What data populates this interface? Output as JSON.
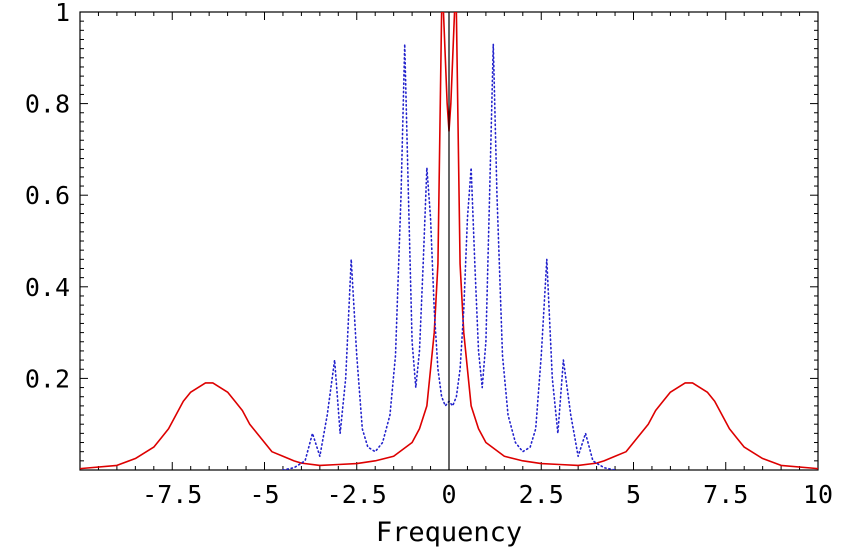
{
  "chart_data": {
    "type": "line",
    "title": "",
    "xlabel": "Frequency",
    "ylabel": "",
    "xlim": [
      -10,
      10
    ],
    "ylim": [
      0,
      1
    ],
    "x_ticks": [
      {
        "value": -7.5,
        "label": "-7.5"
      },
      {
        "value": -5,
        "label": "-5"
      },
      {
        "value": -2.5,
        "label": "-2.5"
      },
      {
        "value": 0,
        "label": "0"
      },
      {
        "value": 2.5,
        "label": "2.5"
      },
      {
        "value": 5,
        "label": "5"
      },
      {
        "value": 7.5,
        "label": "7.5"
      },
      {
        "value": 10,
        "label": "10"
      }
    ],
    "y_ticks": [
      {
        "value": 0.2,
        "label": "0.2"
      },
      {
        "value": 0.4,
        "label": "0.4"
      },
      {
        "value": 0.6,
        "label": "0.6"
      },
      {
        "value": 0.8,
        "label": "0.8"
      },
      {
        "value": 1,
        "label": "1"
      }
    ],
    "grid": false,
    "legend": "none",
    "series": [
      {
        "style": "solid",
        "color": "#dd0000",
        "x": [
          -10,
          -9,
          -8.5,
          -8,
          -7.8,
          -7.6,
          -7.4,
          -7.2,
          -7.0,
          -6.8,
          -6.6,
          -6.4,
          -6.2,
          -6.0,
          -5.8,
          -5.6,
          -5.4,
          -5.2,
          -5.0,
          -4.8,
          -4.5,
          -4.2,
          -4.0,
          -3.5,
          -3.0,
          -2.5,
          -2.0,
          -1.5,
          -1.0,
          -0.8,
          -0.6,
          -0.4,
          -0.3,
          -0.2,
          -0.15,
          -0.1,
          -0.05,
          0,
          0.05,
          0.1,
          0.15,
          0.2,
          0.3,
          0.4,
          0.6,
          0.8,
          1.0,
          1.5,
          2.0,
          2.5,
          3.0,
          3.5,
          4.0,
          4.2,
          4.5,
          4.8,
          5.0,
          5.2,
          5.4,
          5.6,
          5.8,
          6.0,
          6.2,
          6.4,
          6.6,
          6.8,
          7.0,
          7.2,
          7.4,
          7.6,
          7.8,
          8.0,
          8.5,
          9.0,
          10
        ],
        "y": [
          0.003,
          0.01,
          0.025,
          0.05,
          0.07,
          0.09,
          0.12,
          0.15,
          0.17,
          0.18,
          0.19,
          0.19,
          0.18,
          0.17,
          0.15,
          0.13,
          0.1,
          0.08,
          0.06,
          0.04,
          0.03,
          0.02,
          0.015,
          0.01,
          0.012,
          0.014,
          0.02,
          0.03,
          0.06,
          0.09,
          0.14,
          0.3,
          0.45,
          1.0,
          1.0,
          0.9,
          0.8,
          0.74,
          0.8,
          0.9,
          1.0,
          1.0,
          0.45,
          0.3,
          0.14,
          0.09,
          0.06,
          0.03,
          0.02,
          0.014,
          0.012,
          0.01,
          0.015,
          0.02,
          0.03,
          0.04,
          0.06,
          0.08,
          0.1,
          0.13,
          0.15,
          0.17,
          0.18,
          0.19,
          0.19,
          0.18,
          0.17,
          0.15,
          0.12,
          0.09,
          0.07,
          0.05,
          0.025,
          0.01,
          0.003
        ]
      },
      {
        "style": "dotted",
        "color": "#2222cc",
        "x": [
          -4.5,
          -4.2,
          -3.9,
          -3.7,
          -3.5,
          -3.3,
          -3.1,
          -2.95,
          -2.8,
          -2.65,
          -2.5,
          -2.35,
          -2.2,
          -2.0,
          -1.8,
          -1.6,
          -1.45,
          -1.3,
          -1.2,
          -1.1,
          -1.0,
          -0.9,
          -0.8,
          -0.7,
          -0.6,
          -0.5,
          -0.4,
          -0.3,
          -0.2,
          -0.1,
          0,
          0.1,
          0.2,
          0.3,
          0.4,
          0.5,
          0.6,
          0.7,
          0.8,
          0.9,
          1.0,
          1.1,
          1.2,
          1.3,
          1.45,
          1.6,
          1.8,
          2.0,
          2.2,
          2.35,
          2.5,
          2.65,
          2.8,
          2.95,
          3.1,
          3.3,
          3.5,
          3.7,
          3.9,
          4.2,
          4.5
        ],
        "y": [
          0.0,
          0.005,
          0.02,
          0.08,
          0.03,
          0.12,
          0.24,
          0.08,
          0.2,
          0.46,
          0.25,
          0.09,
          0.05,
          0.04,
          0.06,
          0.12,
          0.25,
          0.6,
          0.93,
          0.6,
          0.28,
          0.18,
          0.26,
          0.45,
          0.66,
          0.55,
          0.35,
          0.22,
          0.16,
          0.14,
          0.15,
          0.14,
          0.16,
          0.22,
          0.35,
          0.55,
          0.66,
          0.45,
          0.26,
          0.18,
          0.28,
          0.6,
          0.93,
          0.6,
          0.25,
          0.12,
          0.06,
          0.04,
          0.05,
          0.09,
          0.25,
          0.46,
          0.2,
          0.08,
          0.24,
          0.12,
          0.03,
          0.08,
          0.02,
          0.005,
          0.0
        ]
      }
    ]
  }
}
